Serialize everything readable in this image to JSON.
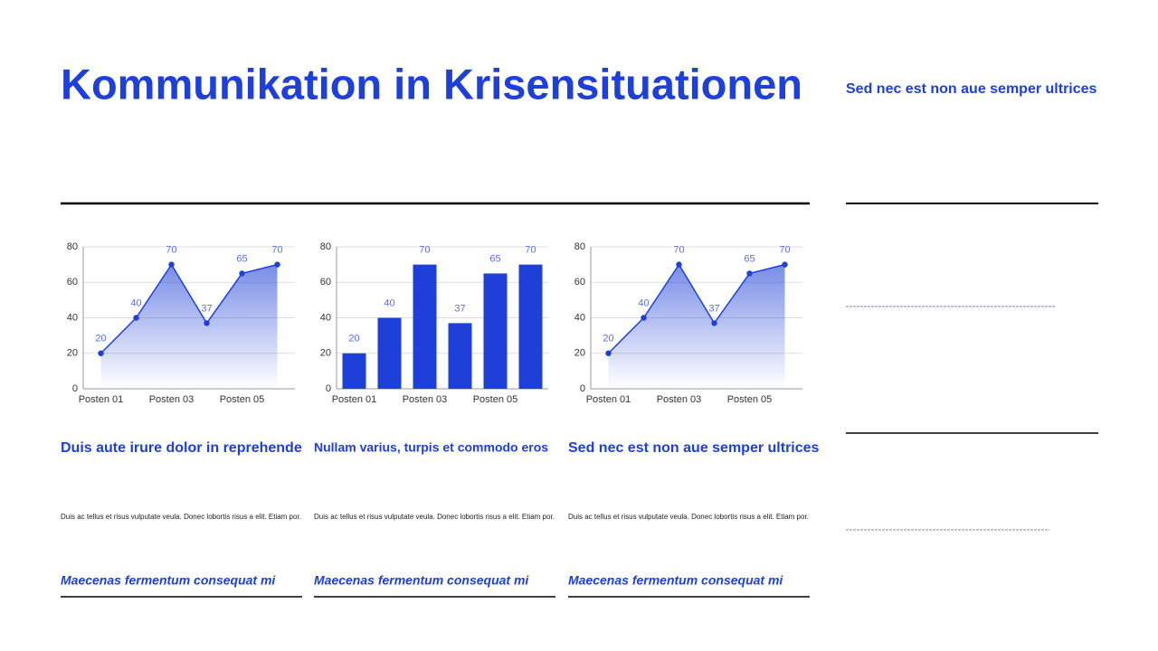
{
  "title": "Kommunikation in Krisensituationen",
  "side": {
    "heading": "Sed nec est non aue semper ultrices"
  },
  "chart_data": [
    {
      "type": "area",
      "categories": [
        "Posten 01",
        null,
        "Posten 03",
        null,
        "Posten 05",
        null
      ],
      "values": [
        20,
        40,
        70,
        37,
        65,
        70
      ],
      "color": "#1e40d8",
      "ylim": [
        0,
        80
      ],
      "yticks": [
        0,
        20,
        40,
        60,
        80
      ],
      "grid": true
    },
    {
      "type": "bar",
      "categories": [
        "Posten 01",
        null,
        "Posten 03",
        null,
        "Posten 05",
        null
      ],
      "values": [
        20,
        40,
        70,
        37,
        65,
        70
      ],
      "color": "#1e40d8",
      "ylim": [
        0,
        80
      ],
      "yticks": [
        0,
        20,
        40,
        60,
        80
      ],
      "grid": true
    },
    {
      "type": "area",
      "categories": [
        "Posten 01",
        null,
        "Posten 03",
        null,
        "Posten 05",
        null
      ],
      "values": [
        20,
        40,
        70,
        37,
        65,
        70
      ],
      "color": "#1e40d8",
      "ylim": [
        0,
        80
      ],
      "yticks": [
        0,
        20,
        40,
        60,
        80
      ],
      "grid": true
    }
  ],
  "columns": [
    {
      "heading": "Duis aute irure dolor in reprehende",
      "body": "Duis ac tellus et risus vulputate veula. Donec lobortis risus a elit. Etiam por.",
      "footer": "Maecenas fermentum consequat mi"
    },
    {
      "heading": "Nullam varius, turpis et commodo eros",
      "body": "Duis ac tellus et risus vulputate veula. Donec lobortis risus a elit. Etiam por.",
      "footer": "Maecenas fermentum consequat mi"
    },
    {
      "heading": "Sed nec est non aue semper ultrices",
      "body": "Duis ac tellus et risus vulputate veula. Donec lobortis risus a elit. Etiam por.",
      "footer": "Maecenas fermentum consequat mi"
    }
  ]
}
